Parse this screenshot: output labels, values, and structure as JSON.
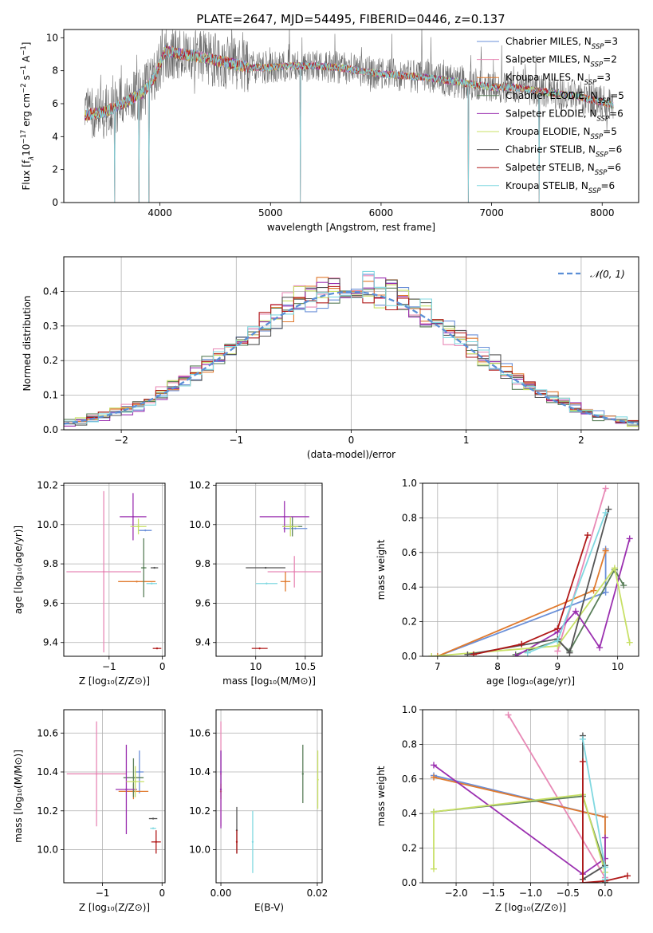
{
  "title": "PLATE=2647, MJD=54495, FIBERID=0446, z=0.137",
  "colors": {
    "chabrier_miles": "#6a8fd8",
    "salpeter_miles": "#e889b6",
    "kroupa_miles": "#e07a2e",
    "chabrier_elodie": "#5a7f5a",
    "salpeter_elodie": "#9b30b0",
    "kroupa_elodie": "#c8e066",
    "chabrier_stelib": "#555555",
    "salpeter_stelib": "#b01818",
    "kroupa_stelib": "#80d8e0",
    "gaussian": "#5b8fd6",
    "grid": "#b0b0b0"
  },
  "chart_data": [
    {
      "id": "spectrum",
      "type": "line",
      "title": "PLATE=2647, MJD=54495, FIBERID=0446, z=0.137",
      "xlabel": "wavelength [Angstrom, rest frame]",
      "ylabel_parts": [
        "Flux [f",
        "λ",
        "10",
        "−17",
        " erg cm",
        "−2",
        " s",
        "−1",
        " A",
        "−1",
        "]"
      ],
      "xlim": [
        3130,
        8330
      ],
      "ylim": [
        0,
        10.5
      ],
      "xticks": [
        "4000",
        "5000",
        "6000",
        "7000",
        "8000"
      ],
      "xtick_values": [
        4000,
        5000,
        6000,
        7000,
        8000
      ],
      "yticks": [
        "0",
        "2",
        "4",
        "6",
        "8",
        "10"
      ],
      "ytick_values": [
        0,
        2,
        4,
        6,
        8,
        10
      ],
      "grid": false,
      "legend_position": "upper right",
      "observed_range": [
        3320,
        8100
      ],
      "continuum": [
        [
          3320,
          5.3
        ],
        [
          3500,
          5.5
        ],
        [
          3700,
          6.1
        ],
        [
          3850,
          6.7
        ],
        [
          3950,
          7.6
        ],
        [
          4050,
          9.2
        ],
        [
          4200,
          9.0
        ],
        [
          4400,
          8.8
        ],
        [
          4600,
          8.5
        ],
        [
          4800,
          8.2
        ],
        [
          5000,
          8.2
        ],
        [
          5200,
          8.3
        ],
        [
          5400,
          8.3
        ],
        [
          5600,
          8.2
        ],
        [
          5800,
          8.0
        ],
        [
          6000,
          7.8
        ],
        [
          6200,
          7.7
        ],
        [
          6400,
          7.6
        ],
        [
          6600,
          7.4
        ],
        [
          6800,
          7.2
        ],
        [
          7000,
          7.0
        ],
        [
          7200,
          7.0
        ],
        [
          7400,
          6.8
        ],
        [
          7600,
          6.6
        ],
        [
          7800,
          6.4
        ],
        [
          8000,
          6.1
        ],
        [
          8100,
          5.9
        ]
      ],
      "drops": [
        [
          3590,
          0
        ],
        [
          3810,
          0
        ],
        [
          3900,
          0
        ],
        [
          5270,
          0
        ],
        [
          6790,
          0
        ],
        [
          7430,
          0
        ]
      ],
      "series": [
        {
          "name_parts": [
            "Chabrier MILES, N",
            "SSP",
            "=3"
          ],
          "color": "#6a8fd8"
        },
        {
          "name_parts": [
            "Salpeter MILES, N",
            "SSP",
            "=2"
          ],
          "color": "#e889b6"
        },
        {
          "name_parts": [
            "Kroupa MILES, N",
            "SSP",
            "=3"
          ],
          "color": "#e07a2e"
        },
        {
          "name_parts": [
            "Chabrier ELODIE, N",
            "SSP",
            "=5"
          ],
          "color": "#5a7f5a"
        },
        {
          "name_parts": [
            "Salpeter ELODIE, N",
            "SSP",
            "=6"
          ],
          "color": "#9b30b0"
        },
        {
          "name_parts": [
            "Kroupa ELODIE, N",
            "SSP",
            "=5"
          ],
          "color": "#c8e066"
        },
        {
          "name_parts": [
            "Chabrier STELIB, N",
            "SSP",
            "=6"
          ],
          "color": "#555555"
        },
        {
          "name_parts": [
            "Salpeter STELIB, N",
            "SSP",
            "=6"
          ],
          "color": "#b01818"
        },
        {
          "name_parts": [
            "Kroupa STELIB, N",
            "SSP",
            "=6"
          ],
          "color": "#80d8e0"
        }
      ]
    },
    {
      "id": "residuals",
      "type": "line",
      "xlabel": "(data-model)/error",
      "ylabel": "Normed distribution",
      "xlim": [
        -2.5,
        2.5
      ],
      "ylim": [
        0,
        0.5
      ],
      "xticks": [
        "−2",
        "−1",
        "0",
        "1",
        "2"
      ],
      "xtick_values": [
        -2,
        -1,
        0,
        1,
        2
      ],
      "yticks": [
        "0.0",
        "0.1",
        "0.2",
        "0.3",
        "0.4"
      ],
      "ytick_values": [
        0,
        0.1,
        0.2,
        0.3,
        0.4
      ],
      "grid": true,
      "legend_position": "upper right",
      "legend_label": "𝒩(0, 1)",
      "bin_width": 0.1,
      "series_colors": [
        "#6a8fd8",
        "#e889b6",
        "#e07a2e",
        "#5a7f5a",
        "#9b30b0",
        "#c8e066",
        "#555555",
        "#b01818",
        "#80d8e0"
      ]
    },
    {
      "id": "age_vs_Z",
      "type": "scatter",
      "xlabel": "Z [log₁₀(Z/Z⊙)]",
      "ylabel": "age  [log₁₀(age/yr)]",
      "xlim": [
        -1.85,
        0.05
      ],
      "ylim": [
        9.33,
        10.21
      ],
      "xticks": [
        "−1",
        "0"
      ],
      "xtick_values": [
        -1,
        0
      ],
      "yticks": [
        "9.4",
        "9.6",
        "9.8",
        "10.0",
        "10.2"
      ],
      "ytick_values": [
        9.4,
        9.6,
        9.8,
        10.0,
        10.2
      ],
      "grid": true,
      "points": [
        {
          "x": -0.32,
          "xerr": 0.12,
          "y": 9.97,
          "yerr": 0.0,
          "color": "#6a8fd8"
        },
        {
          "x": -1.1,
          "xerr": 0.7,
          "y": 9.76,
          "yerr": 0.41,
          "color": "#e889b6"
        },
        {
          "x": -0.48,
          "xerr": 0.35,
          "y": 9.71,
          "yerr": 0.0,
          "color": "#e07a2e"
        },
        {
          "x": -0.35,
          "xerr": 0.05,
          "y": 9.78,
          "yerr": 0.15,
          "color": "#5a7f5a"
        },
        {
          "x": -0.55,
          "xerr": 0.25,
          "y": 10.04,
          "yerr": 0.12,
          "color": "#9b30b0"
        },
        {
          "x": -0.45,
          "xerr": 0.15,
          "y": 9.99,
          "yerr": 0.04,
          "color": "#c8e066"
        },
        {
          "x": -0.15,
          "xerr": 0.07,
          "y": 9.78,
          "yerr": 0.0,
          "color": "#555555"
        },
        {
          "x": -0.1,
          "xerr": 0.08,
          "y": 9.37,
          "yerr": 0.0,
          "color": "#b01818"
        },
        {
          "x": -0.2,
          "xerr": 0.1,
          "y": 9.7,
          "yerr": 0.0,
          "color": "#80d8e0"
        }
      ]
    },
    {
      "id": "age_vs_mass",
      "type": "scatter",
      "xlabel": "mass [log₁₀(M/M⊙)]",
      "ylabel": "",
      "xlim": [
        9.6,
        10.67
      ],
      "ylim": [
        9.33,
        10.21
      ],
      "xticks": [
        "10",
        "10.5"
      ],
      "xtick_values": [
        10,
        10.5
      ],
      "yticks": [
        "9.4",
        "9.6",
        "9.8",
        "10.0",
        "10.2"
      ],
      "ytick_values": [
        9.4,
        9.6,
        9.8,
        10.0,
        10.2
      ],
      "grid": true,
      "points": [
        {
          "x": 10.4,
          "xerr": 0.12,
          "y": 9.98,
          "yerr": 0.0,
          "color": "#6a8fd8"
        },
        {
          "x": 10.39,
          "xerr": 0.27,
          "y": 9.76,
          "yerr": 0.08,
          "color": "#e889b6"
        },
        {
          "x": 10.3,
          "xerr": 0.05,
          "y": 9.71,
          "yerr": 0.05,
          "color": "#e07a2e"
        },
        {
          "x": 10.37,
          "xerr": 0.1,
          "y": 9.99,
          "yerr": 0.05,
          "color": "#5a7f5a"
        },
        {
          "x": 10.29,
          "xerr": 0.25,
          "y": 10.04,
          "yerr": 0.08,
          "color": "#9b30b0"
        },
        {
          "x": 10.35,
          "xerr": 0.08,
          "y": 9.99,
          "yerr": 0.05,
          "color": "#c8e066"
        },
        {
          "x": 10.1,
          "xerr": 0.2,
          "y": 9.78,
          "yerr": 0.0,
          "color": "#555555"
        },
        {
          "x": 10.04,
          "xerr": 0.08,
          "y": 9.37,
          "yerr": 0.0,
          "color": "#b01818"
        },
        {
          "x": 10.11,
          "xerr": 0.11,
          "y": 9.7,
          "yerr": 0.0,
          "color": "#80d8e0"
        }
      ]
    },
    {
      "id": "weight_vs_age",
      "type": "line",
      "xlabel": "age  [log₁₀(age/yr)]",
      "ylabel": "mass weight",
      "xlim": [
        6.75,
        10.35
      ],
      "ylim": [
        0,
        1
      ],
      "xticks": [
        "7",
        "8",
        "9",
        "10"
      ],
      "xtick_values": [
        7,
        8,
        9,
        10
      ],
      "yticks": [
        "0.0",
        "0.2",
        "0.4",
        "0.6",
        "0.8",
        "1.0"
      ],
      "ytick_values": [
        0,
        0.2,
        0.4,
        0.6,
        0.8,
        1.0
      ],
      "grid": true,
      "series": [
        {
          "color": "#6a8fd8",
          "points": [
            [
              7.0,
              0.0
            ],
            [
              9.8,
              0.37
            ],
            [
              9.8,
              0.62
            ]
          ]
        },
        {
          "color": "#e889b6",
          "points": [
            [
              9.0,
              0.03
            ],
            [
              9.8,
              0.97
            ]
          ]
        },
        {
          "color": "#e07a2e",
          "points": [
            [
              7.0,
              0.0
            ],
            [
              9.6,
              0.38
            ],
            [
              9.8,
              0.61
            ]
          ]
        },
        {
          "color": "#5a7f5a",
          "points": [
            [
              8.3,
              0.01
            ],
            [
              9.0,
              0.09
            ],
            [
              9.2,
              0.03
            ],
            [
              9.95,
              0.5
            ],
            [
              10.1,
              0.41
            ]
          ]
        },
        {
          "color": "#9b30b0",
          "points": [
            [
              8.3,
              0.0
            ],
            [
              9.0,
              0.14
            ],
            [
              9.3,
              0.26
            ],
            [
              9.7,
              0.05
            ],
            [
              10.2,
              0.68
            ]
          ]
        },
        {
          "color": "#c8e066",
          "points": [
            [
              6.9,
              0.0
            ],
            [
              9.0,
              0.06
            ],
            [
              9.95,
              0.51
            ],
            [
              10.2,
              0.08
            ]
          ]
        },
        {
          "color": "#555555",
          "points": [
            [
              7.5,
              0.01
            ],
            [
              9.0,
              0.1
            ],
            [
              9.2,
              0.02
            ],
            [
              9.85,
              0.85
            ]
          ]
        },
        {
          "color": "#b01818",
          "points": [
            [
              7.6,
              0.01
            ],
            [
              8.4,
              0.07
            ],
            [
              9.0,
              0.16
            ],
            [
              9.5,
              0.7
            ]
          ]
        },
        {
          "color": "#80d8e0",
          "points": [
            [
              8.5,
              0.02
            ],
            [
              9.0,
              0.09
            ],
            [
              9.8,
              0.83
            ]
          ]
        }
      ]
    },
    {
      "id": "mass_vs_Z",
      "type": "scatter",
      "xlabel": "Z [log₁₀(Z/Z⊙)]",
      "ylabel": "mass [log₁₀(M/M⊙)]",
      "xlim": [
        -1.65,
        0.05
      ],
      "ylim": [
        9.83,
        10.72
      ],
      "xticks": [
        "−1",
        "0"
      ],
      "xtick_values": [
        -1,
        0
      ],
      "yticks": [
        "10.0",
        "10.2",
        "10.4",
        "10.6"
      ],
      "ytick_values": [
        10.0,
        10.2,
        10.4,
        10.6
      ],
      "grid": true,
      "points": [
        {
          "x": -0.38,
          "xerr": 0.07,
          "y": 10.4,
          "yerr": 0.11,
          "color": "#6a8fd8"
        },
        {
          "x": -1.1,
          "xerr": 0.5,
          "y": 10.39,
          "yerr": 0.27,
          "color": "#e889b6"
        },
        {
          "x": -0.48,
          "xerr": 0.25,
          "y": 10.3,
          "yerr": 0.04,
          "color": "#e07a2e"
        },
        {
          "x": -0.48,
          "xerr": 0.17,
          "y": 10.37,
          "yerr": 0.1,
          "color": "#5a7f5a"
        },
        {
          "x": -0.6,
          "xerr": 0.18,
          "y": 10.31,
          "yerr": 0.23,
          "color": "#9b30b0"
        },
        {
          "x": -0.45,
          "xerr": 0.15,
          "y": 10.35,
          "yerr": 0.08,
          "color": "#c8e066"
        },
        {
          "x": -0.15,
          "xerr": 0.07,
          "y": 10.16,
          "yerr": 0.0,
          "color": "#555555"
        },
        {
          "x": -0.1,
          "xerr": 0.08,
          "y": 10.04,
          "yerr": 0.06,
          "color": "#b01818"
        },
        {
          "x": -0.15,
          "xerr": 0.05,
          "y": 10.11,
          "yerr": 0.0,
          "color": "#80d8e0"
        }
      ]
    },
    {
      "id": "mass_vs_ebv",
      "type": "scatter",
      "xlabel": "E(B-V)",
      "ylabel": "",
      "xlim": [
        -0.001,
        0.021
      ],
      "ylim": [
        9.83,
        10.72
      ],
      "xticks": [
        "0.00",
        "0.02"
      ],
      "xtick_values": [
        0.0,
        0.02
      ],
      "yticks": [
        "10.0",
        "10.2",
        "10.4",
        "10.6"
      ],
      "ytick_values": [
        10.0,
        10.2,
        10.4,
        10.6
      ],
      "grid": true,
      "points": [
        {
          "x": 0.0,
          "y": 10.4,
          "yerr": 0.11,
          "color": "#6a8fd8"
        },
        {
          "x": 0.0,
          "y": 10.39,
          "yerr": 0.27,
          "color": "#e889b6"
        },
        {
          "x": 0.0,
          "y": 10.3,
          "yerr": 0.04,
          "color": "#e07a2e"
        },
        {
          "x": 0.017,
          "y": 10.39,
          "yerr": 0.15,
          "color": "#5a7f5a"
        },
        {
          "x": 0.0,
          "y": 10.31,
          "yerr": 0.2,
          "color": "#9b30b0"
        },
        {
          "x": 0.0201,
          "y": 10.36,
          "yerr": 0.15,
          "color": "#c8e066"
        },
        {
          "x": 0.0033,
          "y": 10.1,
          "yerr": 0.12,
          "color": "#555555"
        },
        {
          "x": 0.0033,
          "y": 10.04,
          "yerr": 0.06,
          "color": "#b01818"
        },
        {
          "x": 0.0066,
          "y": 10.04,
          "yerr": 0.16,
          "color": "#80d8e0"
        }
      ]
    },
    {
      "id": "weight_vs_Z",
      "type": "line",
      "xlabel": "Z [log₁₀(Z/Z⊙)]",
      "ylabel": "mass weight",
      "xlim": [
        -2.45,
        0.45
      ],
      "ylim": [
        0,
        1
      ],
      "xticks": [
        "−2.0",
        "−1.5",
        "−1.0",
        "−0.5",
        "0.0"
      ],
      "xtick_values": [
        -2.0,
        -1.5,
        -1.0,
        -0.5,
        0.0
      ],
      "yticks": [
        "0.0",
        "0.2",
        "0.4",
        "0.6",
        "0.8",
        "1.0"
      ],
      "ytick_values": [
        0,
        0.2,
        0.4,
        0.6,
        0.8,
        1.0
      ],
      "grid": true,
      "series": [
        {
          "color": "#6a8fd8",
          "points": [
            [
              -2.3,
              0.62
            ],
            [
              0.0,
              0.38
            ],
            [
              0.0,
              0.0
            ]
          ]
        },
        {
          "color": "#e889b6",
          "points": [
            [
              -1.3,
              0.97
            ],
            [
              0.0,
              0.03
            ]
          ]
        },
        {
          "color": "#e07a2e",
          "points": [
            [
              -2.3,
              0.61
            ],
            [
              0.0,
              0.38
            ],
            [
              0.0,
              0.0
            ]
          ]
        },
        {
          "color": "#5a7f5a",
          "points": [
            [
              -2.3,
              0.41
            ],
            [
              -0.3,
              0.5
            ],
            [
              0.0,
              0.09
            ],
            [
              0.0,
              0.0
            ]
          ]
        },
        {
          "color": "#9b30b0",
          "points": [
            [
              -2.3,
              0.68
            ],
            [
              -0.3,
              0.05
            ],
            [
              0.0,
              0.14
            ],
            [
              0.0,
              0.26
            ]
          ]
        },
        {
          "color": "#c8e066",
          "points": [
            [
              -2.3,
              0.08
            ],
            [
              -2.3,
              0.41
            ],
            [
              -0.3,
              0.51
            ],
            [
              0.0,
              0.06
            ]
          ]
        },
        {
          "color": "#555555",
          "points": [
            [
              -0.3,
              0.85
            ],
            [
              -0.3,
              0.02
            ],
            [
              0.0,
              0.1
            ],
            [
              0.0,
              0.0
            ]
          ]
        },
        {
          "color": "#b01818",
          "points": [
            [
              -0.3,
              0.7
            ],
            [
              -0.3,
              0.0
            ],
            [
              0.0,
              0.01
            ],
            [
              0.3,
              0.04
            ]
          ]
        },
        {
          "color": "#80d8e0",
          "points": [
            [
              -0.3,
              0.83
            ],
            [
              0.0,
              0.09
            ],
            [
              0.0,
              0.02
            ]
          ]
        }
      ]
    }
  ]
}
